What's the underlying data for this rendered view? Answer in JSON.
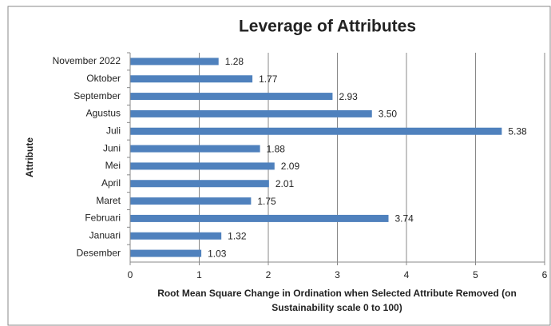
{
  "chart_data": {
    "type": "barh",
    "title": "Leverage of Attributes",
    "x_label_lines": [
      "Root Mean Square Change in Ordination when Selected Attribute Removed (on",
      "Sustainability scale 0 to 100)"
    ],
    "y_label": "Attribute",
    "categories": [
      "November 2022",
      "Oktober",
      "September",
      "Agustus",
      "Juli",
      "Juni",
      "Mei",
      "April",
      "Maret",
      "Februari",
      "Januari",
      "Desember"
    ],
    "values": [
      1.28,
      1.77,
      2.93,
      3.5,
      5.38,
      1.88,
      2.09,
      2.01,
      1.75,
      3.74,
      1.32,
      1.03
    ],
    "value_labels": [
      "1.28",
      "1.77",
      "2.93",
      "3.50",
      "5.38",
      "1.88",
      "2.09",
      "2.01",
      "1.75",
      "3.74",
      "1.32",
      "1.03"
    ],
    "color": "#4f81bd",
    "xlim": [
      0,
      6
    ],
    "xticks": [
      0,
      1,
      2,
      3,
      4,
      5,
      6
    ],
    "grid": true
  }
}
